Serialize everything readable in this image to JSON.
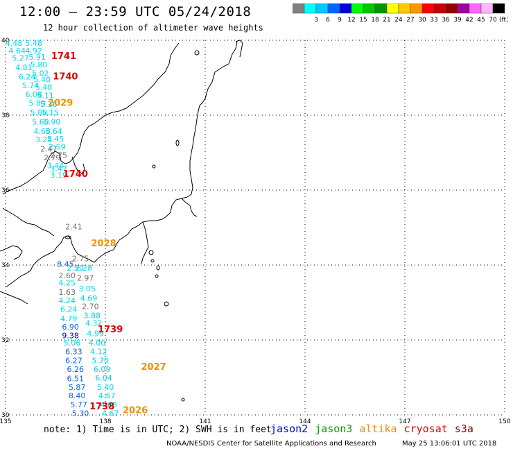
{
  "header": {
    "title": "12:00 – 23:59 UTC 05/24/2018",
    "subtitle": "12 hour collection of altimeter wave heights"
  },
  "scale": {
    "unit": "(ft)",
    "bins": [
      {
        "label": "",
        "color": "#808080"
      },
      {
        "label": "3",
        "color": "#00ffff"
      },
      {
        "label": "6",
        "color": "#00c8ff"
      },
      {
        "label": "9",
        "color": "#0064ff"
      },
      {
        "label": "12",
        "color": "#0000e0"
      },
      {
        "label": "15",
        "color": "#00ff00"
      },
      {
        "label": "18",
        "color": "#00c800"
      },
      {
        "label": "21",
        "color": "#009600"
      },
      {
        "label": "24",
        "color": "#ffff00"
      },
      {
        "label": "27",
        "color": "#ffc800"
      },
      {
        "label": "30",
        "color": "#ff9600"
      },
      {
        "label": "33",
        "color": "#ff0000"
      },
      {
        "label": "36",
        "color": "#c80000"
      },
      {
        "label": "39",
        "color": "#960000"
      },
      {
        "label": "42",
        "color": "#a000a0"
      },
      {
        "label": "45",
        "color": "#ff64ff"
      },
      {
        "label": "70",
        "color": "#ffb4ff"
      },
      {
        "label": "",
        "color": "#000000"
      }
    ]
  },
  "axes": {
    "lat_labels": [
      "40",
      "38",
      "36",
      "34",
      "32",
      "30"
    ],
    "lon_labels": [
      "135",
      "138",
      "141",
      "144",
      "147",
      "150"
    ]
  },
  "colors": {
    "cyan": "#00d8e8",
    "blue": "#1060e0",
    "darkblue": "#0000c0",
    "gray": "#707070",
    "red": "#e00000",
    "orange": "#f09000"
  },
  "tracks": [
    {
      "label": "1741",
      "color": "red",
      "lon": 136.75,
      "lat": 39.5
    },
    {
      "label": "1740",
      "color": "red",
      "lon": 136.8,
      "lat": 38.95
    },
    {
      "label": "2029",
      "color": "orange",
      "lon": 136.65,
      "lat": 38.25
    },
    {
      "label": "1740",
      "color": "red",
      "lon": 137.1,
      "lat": 36.35
    },
    {
      "label": "2028",
      "color": "orange",
      "lon": 137.95,
      "lat": 34.5
    },
    {
      "label": "1739",
      "color": "red",
      "lon": 138.15,
      "lat": 32.2
    },
    {
      "label": "2027",
      "color": "orange",
      "lon": 139.45,
      "lat": 31.2
    },
    {
      "label": "1738",
      "color": "red",
      "lon": 137.9,
      "lat": 30.15
    },
    {
      "label": "2026",
      "color": "orange",
      "lon": 138.9,
      "lat": 30.05
    }
  ],
  "wave_heights": [
    {
      "v": "4.48",
      "c": "cyan",
      "lon": 135.25,
      "lat": 39.85
    },
    {
      "v": "5.48",
      "c": "cyan",
      "lon": 135.85,
      "lat": 39.85
    },
    {
      "v": "4.64",
      "c": "cyan",
      "lon": 135.35,
      "lat": 39.65
    },
    {
      "v": "4.92",
      "c": "cyan",
      "lon": 135.85,
      "lat": 39.65
    },
    {
      "v": "5.27",
      "c": "cyan",
      "lon": 135.45,
      "lat": 39.45
    },
    {
      "v": "5.91",
      "c": "cyan",
      "lon": 135.95,
      "lat": 39.48
    },
    {
      "v": "5.80",
      "c": "cyan",
      "lon": 136.0,
      "lat": 39.28
    },
    {
      "v": "4.81",
      "c": "cyan",
      "lon": 135.55,
      "lat": 39.2
    },
    {
      "v": "5.02",
      "c": "cyan",
      "lon": 136.05,
      "lat": 39.05
    },
    {
      "v": "6.24",
      "c": "cyan",
      "lon": 135.65,
      "lat": 38.95
    },
    {
      "v": "5.40",
      "c": "cyan",
      "lon": 136.1,
      "lat": 38.88
    },
    {
      "v": "5.74",
      "c": "cyan",
      "lon": 135.75,
      "lat": 38.72
    },
    {
      "v": "5.48",
      "c": "cyan",
      "lon": 136.15,
      "lat": 38.68
    },
    {
      "v": "6.08",
      "c": "cyan",
      "lon": 135.85,
      "lat": 38.48
    },
    {
      "v": "5.11",
      "c": "cyan",
      "lon": 136.2,
      "lat": 38.45
    },
    {
      "v": "5.80",
      "c": "cyan",
      "lon": 135.95,
      "lat": 38.25
    },
    {
      "v": "5.16",
      "c": "cyan",
      "lon": 136.3,
      "lat": 38.22
    },
    {
      "v": "5.88",
      "c": "cyan",
      "lon": 136.0,
      "lat": 38.0
    },
    {
      "v": "5.15",
      "c": "cyan",
      "lon": 136.35,
      "lat": 38.0
    },
    {
      "v": "5.60",
      "c": "cyan",
      "lon": 136.05,
      "lat": 37.75
    },
    {
      "v": "5.90",
      "c": "cyan",
      "lon": 136.4,
      "lat": 37.75
    },
    {
      "v": "4.68",
      "c": "cyan",
      "lon": 136.1,
      "lat": 37.5
    },
    {
      "v": "5.64",
      "c": "cyan",
      "lon": 136.45,
      "lat": 37.5
    },
    {
      "v": "3.24",
      "c": "cyan",
      "lon": 136.15,
      "lat": 37.28
    },
    {
      "v": "5.45",
      "c": "cyan",
      "lon": 136.5,
      "lat": 37.3
    },
    {
      "v": "2.47",
      "c": "gray",
      "lon": 136.3,
      "lat": 37.03
    },
    {
      "v": "2.59",
      "c": "cyan",
      "lon": 136.55,
      "lat": 37.08
    },
    {
      "v": "2.79",
      "c": "gray",
      "lon": 136.4,
      "lat": 36.8
    },
    {
      "v": "2.75",
      "c": "gray",
      "lon": 136.6,
      "lat": 36.86
    },
    {
      "v": "3.44",
      "c": "cyan",
      "lon": 136.5,
      "lat": 36.58
    },
    {
      "v": "3.47",
      "c": "cyan",
      "lon": 136.6,
      "lat": 36.5
    },
    {
      "v": "3.19",
      "c": "cyan",
      "lon": 136.6,
      "lat": 36.32
    },
    {
      "v": "2.41",
      "c": "gray",
      "lon": 137.05,
      "lat": 34.95
    },
    {
      "v": "2.75",
      "c": "gray",
      "lon": 137.25,
      "lat": 34.1
    },
    {
      "v": "8.45",
      "c": "blue",
      "lon": 136.8,
      "lat": 33.95
    },
    {
      "v": "2.50",
      "c": "cyan",
      "lon": 137.1,
      "lat": 33.85
    },
    {
      "v": "2.28",
      "c": "cyan",
      "lon": 137.35,
      "lat": 33.85
    },
    {
      "v": "2.60",
      "c": "gray",
      "lon": 136.85,
      "lat": 33.65
    },
    {
      "v": "2.97",
      "c": "gray",
      "lon": 137.4,
      "lat": 33.58
    },
    {
      "v": "4.25",
      "c": "cyan",
      "lon": 136.85,
      "lat": 33.45
    },
    {
      "v": "3.05",
      "c": "cyan",
      "lon": 137.45,
      "lat": 33.3
    },
    {
      "v": "1.63",
      "c": "gray",
      "lon": 136.85,
      "lat": 33.2
    },
    {
      "v": "4.69",
      "c": "cyan",
      "lon": 137.5,
      "lat": 33.05
    },
    {
      "v": "4.24",
      "c": "cyan",
      "lon": 136.85,
      "lat": 32.98
    },
    {
      "v": "2.70",
      "c": "gray",
      "lon": 137.55,
      "lat": 32.82
    },
    {
      "v": "6.24",
      "c": "cyan",
      "lon": 136.9,
      "lat": 32.75
    },
    {
      "v": "3.88",
      "c": "cyan",
      "lon": 137.6,
      "lat": 32.58
    },
    {
      "v": "4.79",
      "c": "cyan",
      "lon": 136.9,
      "lat": 32.5
    },
    {
      "v": "4.32",
      "c": "cyan",
      "lon": 137.65,
      "lat": 32.38
    },
    {
      "v": "6.90",
      "c": "blue",
      "lon": 136.95,
      "lat": 32.28
    },
    {
      "v": "9.38",
      "c": "darkblue",
      "lon": 136.95,
      "lat": 32.05
    },
    {
      "v": "4.99",
      "c": "cyan",
      "lon": 137.7,
      "lat": 32.1
    },
    {
      "v": "5.06",
      "c": "cyan",
      "lon": 137.0,
      "lat": 31.85
    },
    {
      "v": "4.00",
      "c": "cyan",
      "lon": 137.75,
      "lat": 31.85
    },
    {
      "v": "6.33",
      "c": "blue",
      "lon": 137.05,
      "lat": 31.62
    },
    {
      "v": "4.12",
      "c": "cyan",
      "lon": 137.8,
      "lat": 31.62
    },
    {
      "v": "6.27",
      "c": "blue",
      "lon": 137.05,
      "lat": 31.38
    },
    {
      "v": "5.70",
      "c": "cyan",
      "lon": 137.85,
      "lat": 31.38
    },
    {
      "v": "6.26",
      "c": "blue",
      "lon": 137.1,
      "lat": 31.15
    },
    {
      "v": "6.09",
      "c": "cyan",
      "lon": 137.9,
      "lat": 31.15
    },
    {
      "v": "6.51",
      "c": "blue",
      "lon": 137.1,
      "lat": 30.9
    },
    {
      "v": "6.04",
      "c": "cyan",
      "lon": 137.95,
      "lat": 30.92
    },
    {
      "v": "5.87",
      "c": "blue",
      "lon": 137.15,
      "lat": 30.67
    },
    {
      "v": "5.40",
      "c": "cyan",
      "lon": 138.0,
      "lat": 30.67
    },
    {
      "v": "8.40",
      "c": "blue",
      "lon": 137.15,
      "lat": 30.44
    },
    {
      "v": "4.67",
      "c": "cyan",
      "lon": 138.05,
      "lat": 30.44
    },
    {
      "v": "5.77",
      "c": "blue",
      "lon": 137.2,
      "lat": 30.2
    },
    {
      "v": "4.68",
      "c": "cyan",
      "lon": 138.1,
      "lat": 30.2
    },
    {
      "v": "5.30",
      "c": "blue",
      "lon": 137.25,
      "lat": 29.97
    },
    {
      "v": "4.67",
      "c": "cyan",
      "lon": 138.15,
      "lat": 29.97
    }
  ],
  "legend": {
    "note": "note: 1) Time is in UTC; 2) SWH is in feet",
    "satellites": [
      {
        "name": "jason2",
        "color": "#0000e0"
      },
      {
        "name": "jason3",
        "color": "#00a000"
      },
      {
        "name": "altika",
        "color": "#f09000"
      },
      {
        "name": "cryosat",
        "color": "#e00000"
      },
      {
        "name": "s3a",
        "color": "#900000"
      }
    ]
  },
  "footer": {
    "credit": "NOAA/NESDIS Center for Satellite Applications and Research",
    "timestamp": "May 25 13:06:01 UTC 2018"
  }
}
